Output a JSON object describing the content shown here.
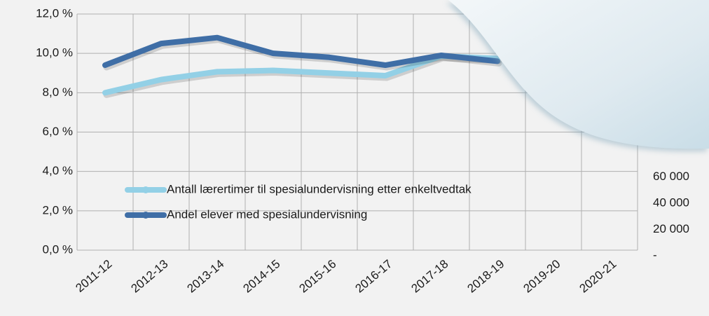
{
  "chart_data": {
    "type": "line",
    "categories": [
      "2011-12",
      "2012-13",
      "2013-14",
      "2014-15",
      "2015-16",
      "2016-17",
      "2017-18",
      "2018-19",
      "2019-20",
      "2020-21"
    ],
    "series": [
      {
        "name": "Antall lærertimer til spesialundervisning etter enkeltvedtak",
        "color": "#93d0e6",
        "axis": "y2",
        "values": [
          120000,
          130000,
          136000,
          137000,
          135000,
          133000,
          148000,
          146000,
          null,
          null
        ]
      },
      {
        "name": "Andel elever med spesialundervisning",
        "color": "#3f6ea6",
        "values": [
          9.4,
          10.5,
          10.8,
          10.0,
          9.8,
          9.4,
          9.9,
          9.6,
          null,
          null
        ]
      }
    ],
    "ylim": [
      0,
      12
    ],
    "yticks": [
      {
        "value": 0,
        "label": "0,0 %"
      },
      {
        "value": 2,
        "label": "2,0 %"
      },
      {
        "value": 4,
        "label": "4,0 %"
      },
      {
        "value": 6,
        "label": "6,0 %"
      },
      {
        "value": 8,
        "label": "8,0 %"
      },
      {
        "value": 10,
        "label": "10,0 %"
      },
      {
        "value": 12,
        "label": "12,0 %"
      }
    ],
    "y2lim": [
      0,
      180000
    ],
    "y2ticks": [
      {
        "value": 0,
        "label": "-"
      },
      {
        "value": 20000,
        "label": "20 000"
      },
      {
        "value": 40000,
        "label": "40 000"
      },
      {
        "value": 60000,
        "label": "60 000"
      }
    ],
    "grid": true
  }
}
